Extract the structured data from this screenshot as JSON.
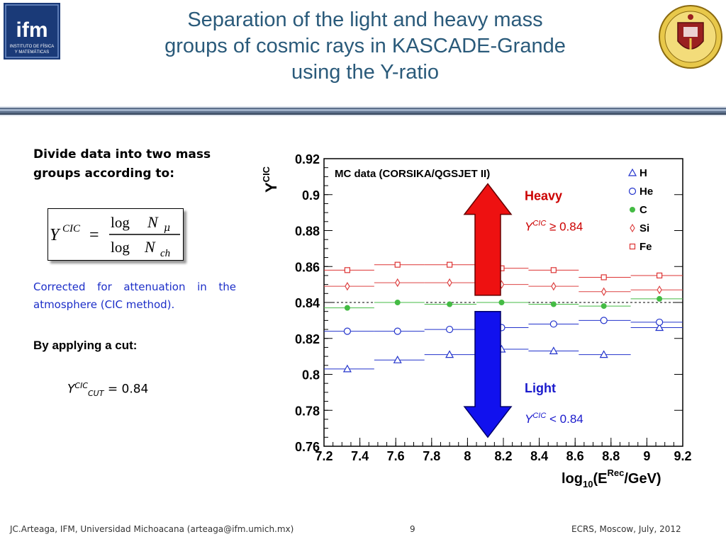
{
  "header": {
    "title_lines": [
      "Separation of the light and heavy mass",
      "groups of cosmic rays in KASCADE-Grande",
      "using the Y-ratio"
    ],
    "logo_left_text": "ifm",
    "logo_left_subtext": [
      "INSTITUTO DE FÍSICA",
      "Y MATEMÁTICAS"
    ]
  },
  "left": {
    "divide_text": "Divide data into two mass groups according to:",
    "formula": {
      "lhs": "Y",
      "lhs_sup": "CIC",
      "equals": "=",
      "numerator": "log",
      "numerator_var": "N",
      "numerator_sub": "μ",
      "denominator": "log",
      "denominator_var": "N",
      "denominator_sub": "ch"
    },
    "corrected_text": "Corrected for attenuation in the atmosphere (CIC method).",
    "cut_heading": "By applying a cut:",
    "cut_eq": {
      "var": "Y",
      "sup": "CIC",
      "sub": "CUT",
      "rest": "= 0.84"
    }
  },
  "chart_data": {
    "type": "scatter",
    "title": "MC data (CORSIKA/QGSJET II)",
    "xlabel": {
      "base": "log",
      "base_sub": "10",
      "open": "(E",
      "sup": "Rec",
      "close": "/GeV)"
    },
    "ylabel": {
      "base": "Y",
      "sup": "CIC"
    },
    "xlim": [
      7.2,
      9.2
    ],
    "ylim": [
      0.76,
      0.92
    ],
    "xticks": [
      "7.2",
      "7.4",
      "7.6",
      "7.8",
      "8",
      "8.2",
      "8.4",
      "8.6",
      "8.8",
      "9",
      "9.2"
    ],
    "yticks": [
      "0.76",
      "0.78",
      "0.8",
      "0.82",
      "0.84",
      "0.86",
      "0.88",
      "0.9",
      "0.92"
    ],
    "cut_line": 0.84,
    "series": [
      {
        "name": "H",
        "marker": "triangle",
        "color": "#2233cc",
        "x": [
          7.33,
          7.61,
          7.9,
          8.19,
          8.48,
          8.76,
          9.07
        ],
        "xerr": [
          [
            7.2,
            7.48
          ],
          [
            7.48,
            7.76
          ],
          [
            7.76,
            8.05
          ],
          [
            8.05,
            8.34
          ],
          [
            8.34,
            8.62
          ],
          [
            8.62,
            8.91
          ],
          [
            8.91,
            9.2
          ]
        ],
        "y": [
          0.803,
          0.808,
          0.811,
          0.814,
          0.813,
          0.811,
          0.826
        ]
      },
      {
        "name": "He",
        "marker": "circle-open",
        "color": "#2233cc",
        "x": [
          7.33,
          7.61,
          7.9,
          8.19,
          8.48,
          8.76,
          9.07
        ],
        "xerr": [
          [
            7.2,
            7.48
          ],
          [
            7.48,
            7.76
          ],
          [
            7.76,
            8.05
          ],
          [
            8.05,
            8.34
          ],
          [
            8.34,
            8.62
          ],
          [
            8.62,
            8.91
          ],
          [
            8.91,
            9.2
          ]
        ],
        "y": [
          0.824,
          0.824,
          0.825,
          0.826,
          0.828,
          0.83,
          0.829
        ]
      },
      {
        "name": "C",
        "marker": "circle-filled",
        "color": "#44bb44",
        "x": [
          7.33,
          7.61,
          7.9,
          8.19,
          8.48,
          8.76,
          9.07
        ],
        "xerr": [
          [
            7.2,
            7.48
          ],
          [
            7.48,
            7.76
          ],
          [
            7.76,
            8.05
          ],
          [
            8.05,
            8.34
          ],
          [
            8.34,
            8.62
          ],
          [
            8.62,
            8.91
          ],
          [
            8.91,
            9.2
          ]
        ],
        "y": [
          0.837,
          0.84,
          0.839,
          0.84,
          0.839,
          0.838,
          0.842
        ]
      },
      {
        "name": "Si",
        "marker": "diamond",
        "color": "#dd4444",
        "x": [
          7.33,
          7.61,
          7.9,
          8.19,
          8.48,
          8.76,
          9.07
        ],
        "xerr": [
          [
            7.2,
            7.48
          ],
          [
            7.48,
            7.76
          ],
          [
            7.76,
            8.05
          ],
          [
            8.05,
            8.34
          ],
          [
            8.34,
            8.62
          ],
          [
            8.62,
            8.91
          ],
          [
            8.91,
            9.2
          ]
        ],
        "y": [
          0.849,
          0.851,
          0.851,
          0.85,
          0.849,
          0.846,
          0.847
        ]
      },
      {
        "name": "Fe",
        "marker": "square",
        "color": "#dd3333",
        "x": [
          7.33,
          7.61,
          7.9,
          8.19,
          8.48,
          8.76,
          9.07
        ],
        "xerr": [
          [
            7.2,
            7.48
          ],
          [
            7.48,
            7.76
          ],
          [
            7.76,
            8.05
          ],
          [
            8.05,
            8.34
          ],
          [
            8.34,
            8.62
          ],
          [
            8.62,
            8.91
          ],
          [
            8.91,
            9.2
          ]
        ],
        "y": [
          0.858,
          0.861,
          0.861,
          0.859,
          0.858,
          0.854,
          0.855
        ]
      }
    ],
    "annotations": {
      "heavy": {
        "label": "Heavy",
        "cond_var": "Y",
        "cond_sup": "CIC",
        "cond_rest": "≥ 0.84",
        "color": "#cc0000"
      },
      "light": {
        "label": "Light",
        "cond_var": "Y",
        "cond_sup": "CIC",
        "cond_rest": "< 0.84",
        "color": "#1a1acc"
      }
    },
    "legend_placement": "top-right",
    "grid": false
  },
  "footer": {
    "left": "JC.Arteaga, IFM,  Universidad Michoacana  (arteaga@ifm.umich.mx)",
    "page": "9",
    "right": "ECRS, Moscow, July, 2012"
  },
  "colors": {
    "title": "#2a5a7a",
    "logo_blue": "#1a3a78",
    "note_blue": "#1c2ec8",
    "heavy_arrow": "#ee1111",
    "light_arrow": "#1111ee"
  }
}
